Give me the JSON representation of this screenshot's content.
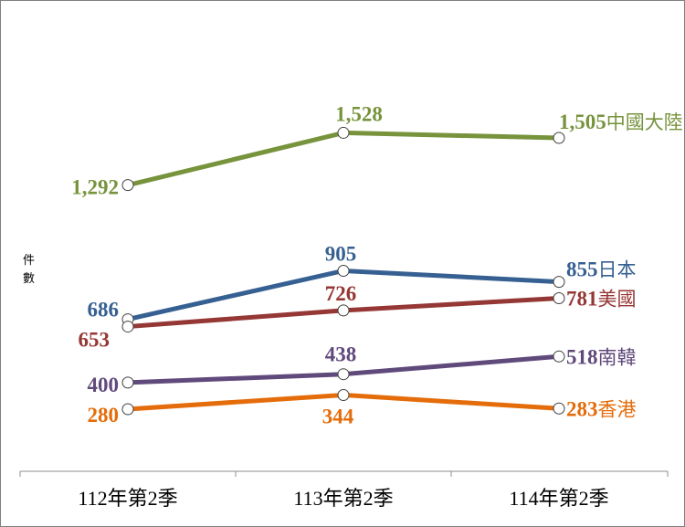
{
  "chart_data": {
    "type": "line",
    "ylabel": "件數",
    "categories": [
      "112年第2季",
      "113年第2季",
      "114年第2季"
    ],
    "ylim": [
      200,
      1650
    ],
    "grid": false,
    "legend": "labels at line ends",
    "series": [
      {
        "name": "中國大陸",
        "color": "#77933c",
        "values": [
          1292,
          1528,
          1505
        ],
        "labels": [
          "1,292",
          "1,528",
          "1,505"
        ]
      },
      {
        "name": "日本",
        "color": "#376092",
        "values": [
          686,
          905,
          855
        ],
        "labels": [
          "686",
          "905",
          "855"
        ]
      },
      {
        "name": "美國",
        "color": "#953735",
        "values": [
          653,
          726,
          781
        ],
        "labels": [
          "653",
          "726",
          "781"
        ]
      },
      {
        "name": "南韓",
        "color": "#604a7b",
        "values": [
          400,
          438,
          518
        ],
        "labels": [
          "400",
          "438",
          "518"
        ]
      },
      {
        "name": "香港",
        "color": "#e46c0a",
        "values": [
          280,
          344,
          283
        ],
        "labels": [
          "280",
          "344",
          "283"
        ]
      }
    ]
  }
}
